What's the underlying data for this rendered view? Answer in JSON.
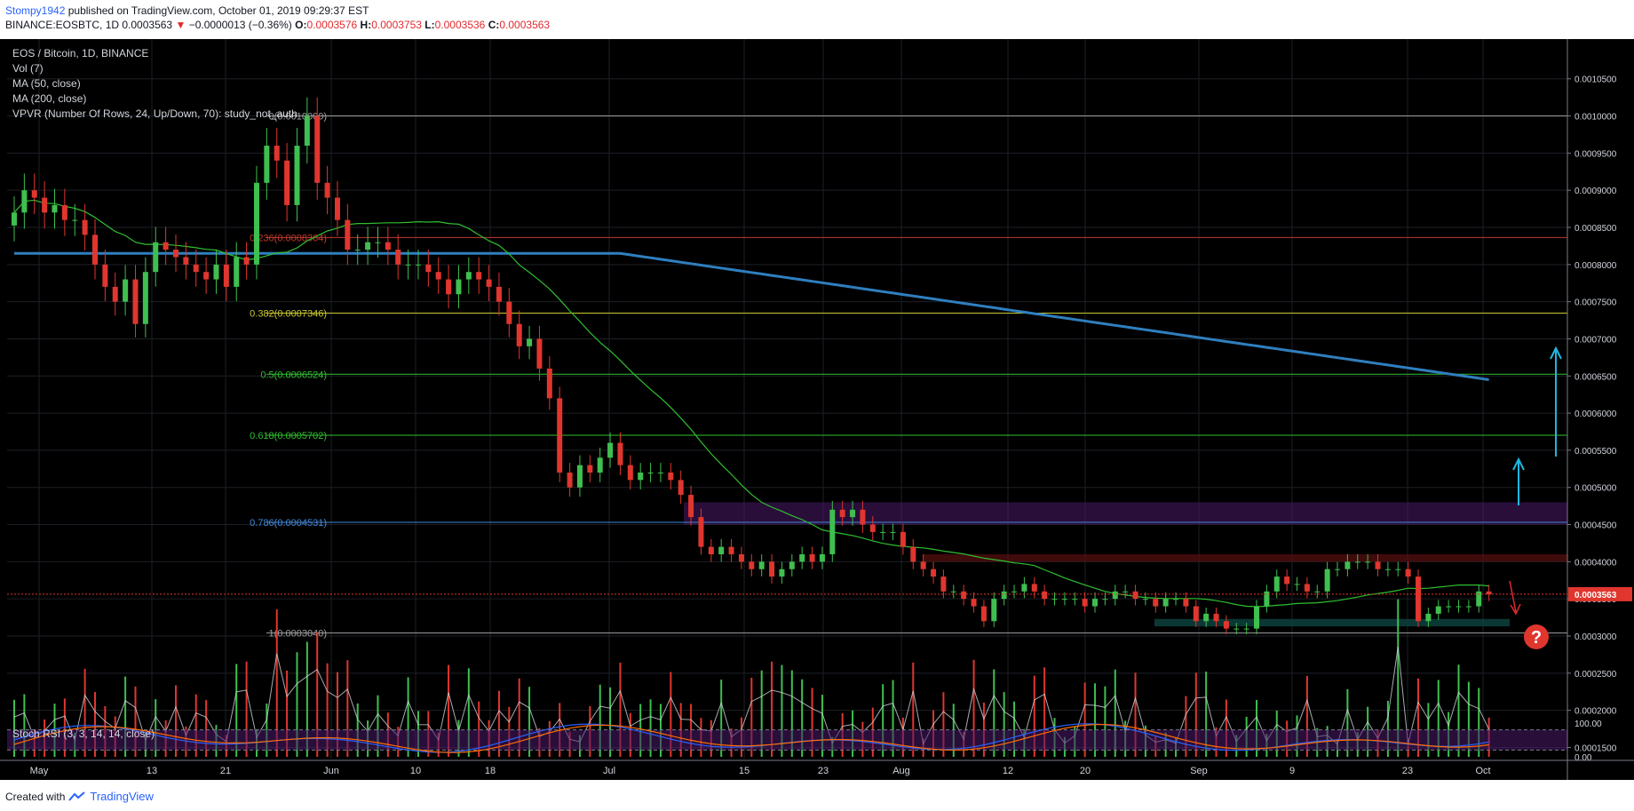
{
  "header": {
    "author": "Stompy1942",
    "published": "published on TradingView.com, October 01, 2019 09:29:37 EST",
    "symbol": "BINANCE:EOSBTC, 1D",
    "last": "0.0003563",
    "change": "−0.0000013 (−0.36%)",
    "o_label": "O:",
    "o": "0.0003576",
    "h_label": "H:",
    "h": "0.0003753",
    "l_label": "L:",
    "l": "0.0003536",
    "c_label": "C:",
    "c": "0.0003563"
  },
  "footer": {
    "created": "Created with",
    "brand": "TradingView"
  },
  "colors": {
    "background": "#000000",
    "up": "#26a69a",
    "up_candle": "#3fbf4f",
    "down_candle": "#e0362e",
    "ma50": "#2fbf2f",
    "ma200": "#2f7fbf",
    "fib_red": "#c0392b",
    "fib_yellow": "#c8c832",
    "fib_green": "#2fbf2f",
    "fib_blue": "#3f88d8",
    "fib_gray": "#a0a0a0",
    "purple_zone": "#4a1a6a",
    "red_zone": "#5a1010",
    "teal_zone": "#0f4a45",
    "arrow_cyan": "#1fb6e0",
    "arrow_red": "#e0292e"
  },
  "chart_data": [
    {
      "type": "candlestick",
      "title": "EOS / Bitcoin, 1D, BINANCE",
      "indicators": [
        "Vol (7)",
        "MA (50, close)",
        "MA (200, close)",
        "VPVR (Number Of Rows, 24, Up/Down, 70): study_not_auth"
      ],
      "x_labels": [
        "May",
        "13",
        "21",
        "Jun",
        "10",
        "18",
        "Jul",
        "15",
        "23",
        "Aug",
        "12",
        "20",
        "Sep",
        "9",
        "23",
        "Oct"
      ],
      "y_ticks": [
        "0.0010500",
        "0.0010000",
        "0.0009500",
        "0.0009000",
        "0.0008500",
        "0.0008000",
        "0.0007500",
        "0.0007000",
        "0.0006500",
        "0.0006000",
        "0.0005500",
        "0.0005000",
        "0.0004500",
        "0.0004000",
        "0.0003500",
        "0.0003000",
        "0.0002500",
        "0.0002000",
        "0.0001500"
      ],
      "ylim": [
        0.000135,
        0.00107
      ],
      "last_price": 0.0003563,
      "last_price_label": "0.0003563",
      "fib_levels": [
        {
          "label": "0(0.0010000)",
          "value": 0.001,
          "color": "#a0a0a0"
        },
        {
          "label": "0.236(0.0008364)",
          "value": 0.0008364,
          "color": "#c0392b"
        },
        {
          "label": "0.382(0.0007346)",
          "value": 0.0007346,
          "color": "#c8c832"
        },
        {
          "label": "0.5(0.0006524)",
          "value": 0.0006524,
          "color": "#2fbf2f"
        },
        {
          "label": "0.618(0.0005702)",
          "value": 0.0005702,
          "color": "#2fbf2f"
        },
        {
          "label": "0.786(0.0004531)",
          "value": 0.0004531,
          "color": "#3f88d8"
        },
        {
          "label": "1(0.0003040)",
          "value": 0.000304,
          "color": "#a0a0a0"
        }
      ],
      "close": [
        0.00087,
        0.0009,
        0.00089,
        0.00087,
        0.00088,
        0.00086,
        0.00086,
        0.00084,
        0.0008,
        0.00077,
        0.00075,
        0.00078,
        0.00072,
        0.00079,
        0.00083,
        0.00082,
        0.00081,
        0.0008,
        0.00079,
        0.00078,
        0.0008,
        0.00077,
        0.00081,
        0.0008,
        0.00091,
        0.00096,
        0.00094,
        0.00088,
        0.00096,
        0.001,
        0.00091,
        0.00089,
        0.00086,
        0.00082,
        0.00082,
        0.00083,
        0.00083,
        0.00082,
        0.0008,
        0.0008,
        0.0008,
        0.00079,
        0.00078,
        0.00076,
        0.00078,
        0.00079,
        0.00078,
        0.00077,
        0.00075,
        0.00072,
        0.00069,
        0.0007,
        0.00066,
        0.00062,
        0.00052,
        0.0005,
        0.00053,
        0.00052,
        0.00054,
        0.00056,
        0.00053,
        0.00051,
        0.00052,
        0.00052,
        0.00052,
        0.00051,
        0.00049,
        0.00046,
        0.00042,
        0.00041,
        0.00042,
        0.00041,
        0.0004,
        0.00039,
        0.0004,
        0.00038,
        0.00039,
        0.0004,
        0.00041,
        0.0004,
        0.00041,
        0.00047,
        0.00046,
        0.00047,
        0.00045,
        0.00044,
        0.00044,
        0.00044,
        0.00042,
        0.0004,
        0.00039,
        0.00038,
        0.00036,
        0.00036,
        0.00035,
        0.00034,
        0.00032,
        0.00035,
        0.00036,
        0.00036,
        0.00037,
        0.00036,
        0.00035,
        0.00035,
        0.00035,
        0.00035,
        0.00034,
        0.00035,
        0.00035,
        0.00036,
        0.00036,
        0.00035,
        0.00035,
        0.00034,
        0.00035,
        0.00035,
        0.00034,
        0.00032,
        0.00033,
        0.00032,
        0.00031,
        0.00031,
        0.00031,
        0.00034,
        0.00036,
        0.00038,
        0.00037,
        0.00037,
        0.00036,
        0.00036,
        0.00039,
        0.00039,
        0.0004,
        0.0004,
        0.0004,
        0.00039,
        0.00039,
        0.00039,
        0.00038,
        0.00032,
        0.00033,
        0.00034,
        0.00034,
        0.00034,
        0.00034,
        0.00036,
        0.000356
      ],
      "volume_ylim": [
        0,
        0.0003
      ]
    },
    {
      "type": "line",
      "title": "Stoch RSI (3, 3, 14, 14, close)",
      "y_ticks": [
        "100.00",
        "0.00"
      ],
      "ylim": [
        0,
        100
      ],
      "bands": [
        80,
        20
      ]
    }
  ]
}
